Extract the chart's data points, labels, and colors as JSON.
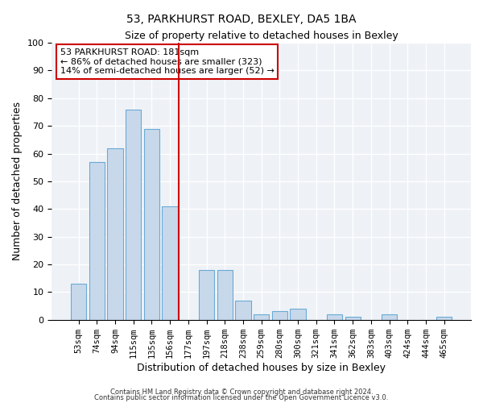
{
  "title": "53, PARKHURST ROAD, BEXLEY, DA5 1BA",
  "subtitle": "Size of property relative to detached houses in Bexley",
  "xlabel": "Distribution of detached houses by size in Bexley",
  "ylabel": "Number of detached properties",
  "bar_labels": [
    "53sqm",
    "74sqm",
    "94sqm",
    "115sqm",
    "135sqm",
    "156sqm",
    "177sqm",
    "197sqm",
    "218sqm",
    "238sqm",
    "259sqm",
    "280sqm",
    "300sqm",
    "321sqm",
    "341sqm",
    "362sqm",
    "383sqm",
    "403sqm",
    "424sqm",
    "444sqm",
    "465sqm"
  ],
  "bar_values": [
    13,
    57,
    62,
    76,
    69,
    41,
    0,
    18,
    18,
    7,
    2,
    3,
    4,
    0,
    2,
    1,
    0,
    2,
    0,
    0,
    1
  ],
  "bar_color": "#c8d8eb",
  "bar_edge_color": "#6aaad4",
  "vline_color": "#cc0000",
  "annotation_text": "53 PARKHURST ROAD: 181sqm\n← 86% of detached houses are smaller (323)\n14% of semi-detached houses are larger (52) →",
  "annotation_box_color": "#ffffff",
  "annotation_box_edge": "#cc0000",
  "ylim": [
    0,
    100
  ],
  "yticks": [
    0,
    10,
    20,
    30,
    40,
    50,
    60,
    70,
    80,
    90,
    100
  ],
  "fig_color": "#ffffff",
  "ax_color": "#eef2f7",
  "grid_color": "#ffffff",
  "footer1": "Contains HM Land Registry data © Crown copyright and database right 2024.",
  "footer2": "Contains public sector information licensed under the Open Government Licence v3.0."
}
